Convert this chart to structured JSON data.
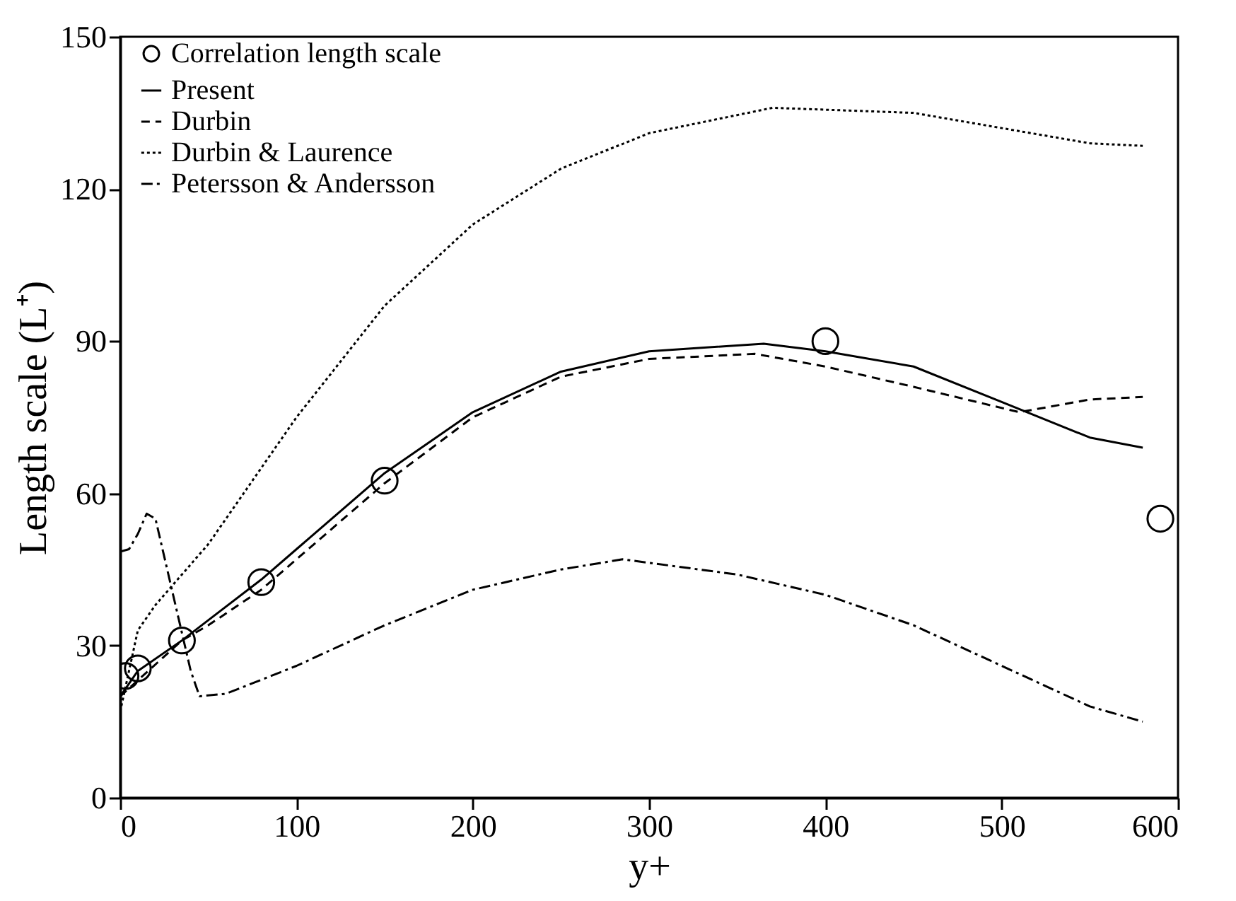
{
  "chart_data": {
    "type": "line",
    "xlabel": "y+",
    "ylabel": "Length scale (L⁺)",
    "xlim": [
      0,
      600
    ],
    "ylim": [
      0,
      150
    ],
    "xticks": [
      0,
      100,
      200,
      300,
      400,
      500,
      600
    ],
    "yticks": [
      0,
      30,
      60,
      90,
      120,
      150
    ],
    "grid": false,
    "legend": "top left",
    "series": [
      {
        "name": "Correlation length scale",
        "type": "scatter",
        "marker": "circle",
        "color": "#000000",
        "x": [
          3,
          10,
          35,
          80,
          150,
          400,
          590
        ],
        "values": [
          24,
          25.5,
          31,
          42.5,
          62.5,
          90,
          55
        ]
      },
      {
        "name": "Present",
        "type": "line",
        "line_style": "solid",
        "color": "#000000",
        "x": [
          0,
          10,
          35,
          50,
          80,
          100,
          150,
          200,
          250,
          300,
          365,
          400,
          450,
          500,
          550,
          580
        ],
        "values": [
          20,
          25,
          31,
          35,
          43,
          49,
          64,
          76,
          84,
          88,
          89.5,
          88,
          85,
          78,
          71,
          69
        ]
      },
      {
        "name": "Durbin",
        "type": "line",
        "line_style": "dashed",
        "color": "#000000",
        "x": [
          0,
          35,
          50,
          80,
          150,
          200,
          250,
          300,
          360,
          400,
          450,
          510,
          550,
          580
        ],
        "values": [
          20,
          31,
          34,
          41,
          62,
          75,
          83,
          86.5,
          87.5,
          85,
          81,
          76,
          78.5,
          79
        ]
      },
      {
        "name": "Durbin & Laurence",
        "type": "line",
        "line_style": "dotted",
        "color": "#000000",
        "x": [
          0,
          10,
          20,
          50,
          100,
          150,
          200,
          250,
          300,
          370,
          450,
          500,
          550,
          580
        ],
        "values": [
          17,
          33,
          38,
          50,
          75,
          97,
          113,
          124,
          131,
          136,
          135,
          132,
          129,
          128.5
        ]
      },
      {
        "name": "Petersson & Andersson",
        "type": "line",
        "line_style": "dashdot",
        "color": "#000000",
        "x": [
          0,
          5,
          10,
          15,
          20,
          30,
          40,
          45,
          60,
          100,
          150,
          200,
          250,
          285,
          350,
          400,
          450,
          500,
          550,
          580
        ],
        "values": [
          48.5,
          49,
          52,
          56,
          55,
          40,
          25,
          20,
          20.5,
          26,
          34,
          41,
          45,
          47,
          44,
          40,
          34,
          26,
          18,
          15
        ]
      }
    ]
  }
}
